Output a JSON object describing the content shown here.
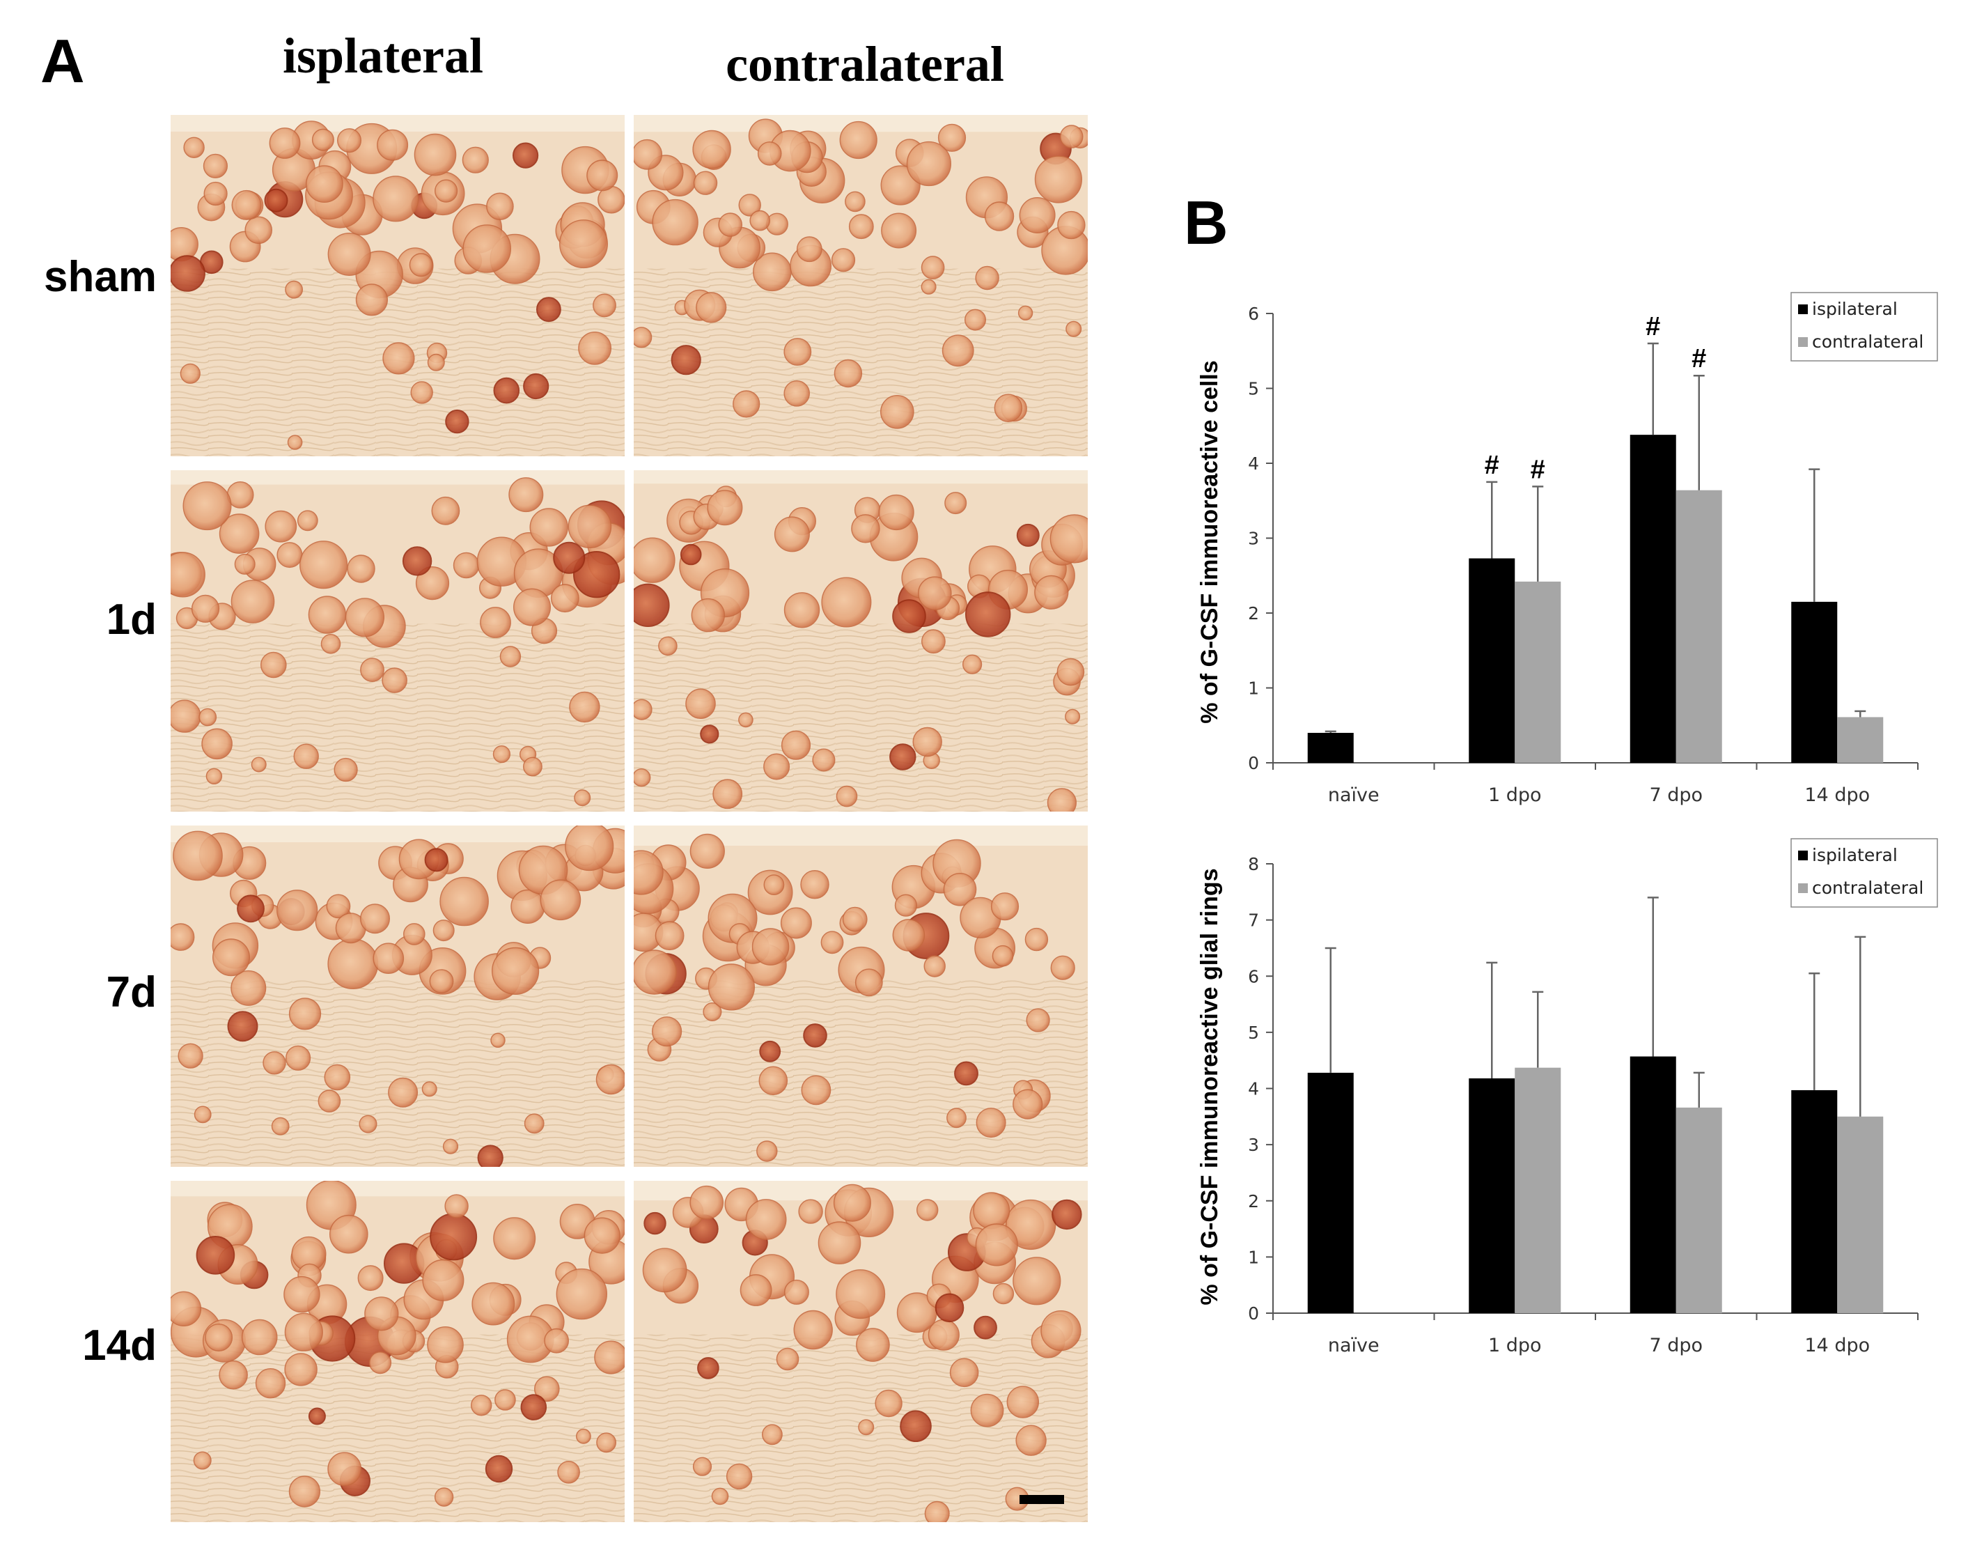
{
  "panel_a": {
    "label": "A",
    "columns": [
      "isplateral",
      "contralateral"
    ],
    "rows": [
      "sham",
      "1d",
      "7d",
      "14d"
    ]
  },
  "panel_b": {
    "label": "B"
  },
  "colors": {
    "ispilateral": "#000000",
    "contralateral": "#a6a6a6",
    "tissue_background": "#f1dcc3",
    "stain_light": "#e8a878",
    "stain_dark": "#c8542c"
  },
  "chart_data": [
    {
      "type": "bar",
      "ylabel": "% of G-CSF immuoreactive cells",
      "xlabel": "",
      "title": "",
      "categories": [
        "naïve",
        "1 dpo",
        "7 dpo",
        "14 dpo"
      ],
      "ylim": [
        0,
        6
      ],
      "yticks": [
        0,
        1,
        2,
        3,
        4,
        5,
        6
      ],
      "legend_position": "top-right",
      "grid": false,
      "series": [
        {
          "name": "ispilateral",
          "color": "#000000",
          "values": [
            0.4,
            2.73,
            4.38,
            2.15
          ],
          "errors": [
            0.02,
            1.02,
            1.22,
            1.77
          ]
        },
        {
          "name": "contralateral",
          "color": "#a6a6a6",
          "values": [
            null,
            2.42,
            3.64,
            0.61
          ],
          "errors": [
            null,
            1.27,
            1.53,
            0.08
          ]
        }
      ],
      "annotations": [
        {
          "text": "#",
          "category": "1 dpo",
          "series": "ispilateral"
        },
        {
          "text": "#",
          "category": "1 dpo",
          "series": "contralateral"
        },
        {
          "text": "#",
          "category": "7 dpo",
          "series": "ispilateral"
        },
        {
          "text": "#",
          "category": "7 dpo",
          "series": "contralateral"
        }
      ]
    },
    {
      "type": "bar",
      "ylabel": "% of G-CSF immunoreactive glial rings",
      "xlabel": "",
      "title": "",
      "categories": [
        "naïve",
        "1 dpo",
        "7 dpo",
        "14 dpo"
      ],
      "ylim": [
        0,
        8
      ],
      "yticks": [
        0,
        1,
        2,
        3,
        4,
        5,
        6,
        7,
        8
      ],
      "legend_position": "top-right",
      "grid": false,
      "series": [
        {
          "name": "ispilateral",
          "color": "#000000",
          "values": [
            4.28,
            4.18,
            4.57,
            3.97
          ],
          "errors": [
            2.22,
            2.06,
            2.83,
            2.08
          ]
        },
        {
          "name": "contralateral",
          "color": "#a6a6a6",
          "values": [
            null,
            4.37,
            3.66,
            3.5
          ],
          "errors": [
            null,
            1.35,
            0.62,
            3.2
          ]
        }
      ],
      "annotations": []
    }
  ]
}
